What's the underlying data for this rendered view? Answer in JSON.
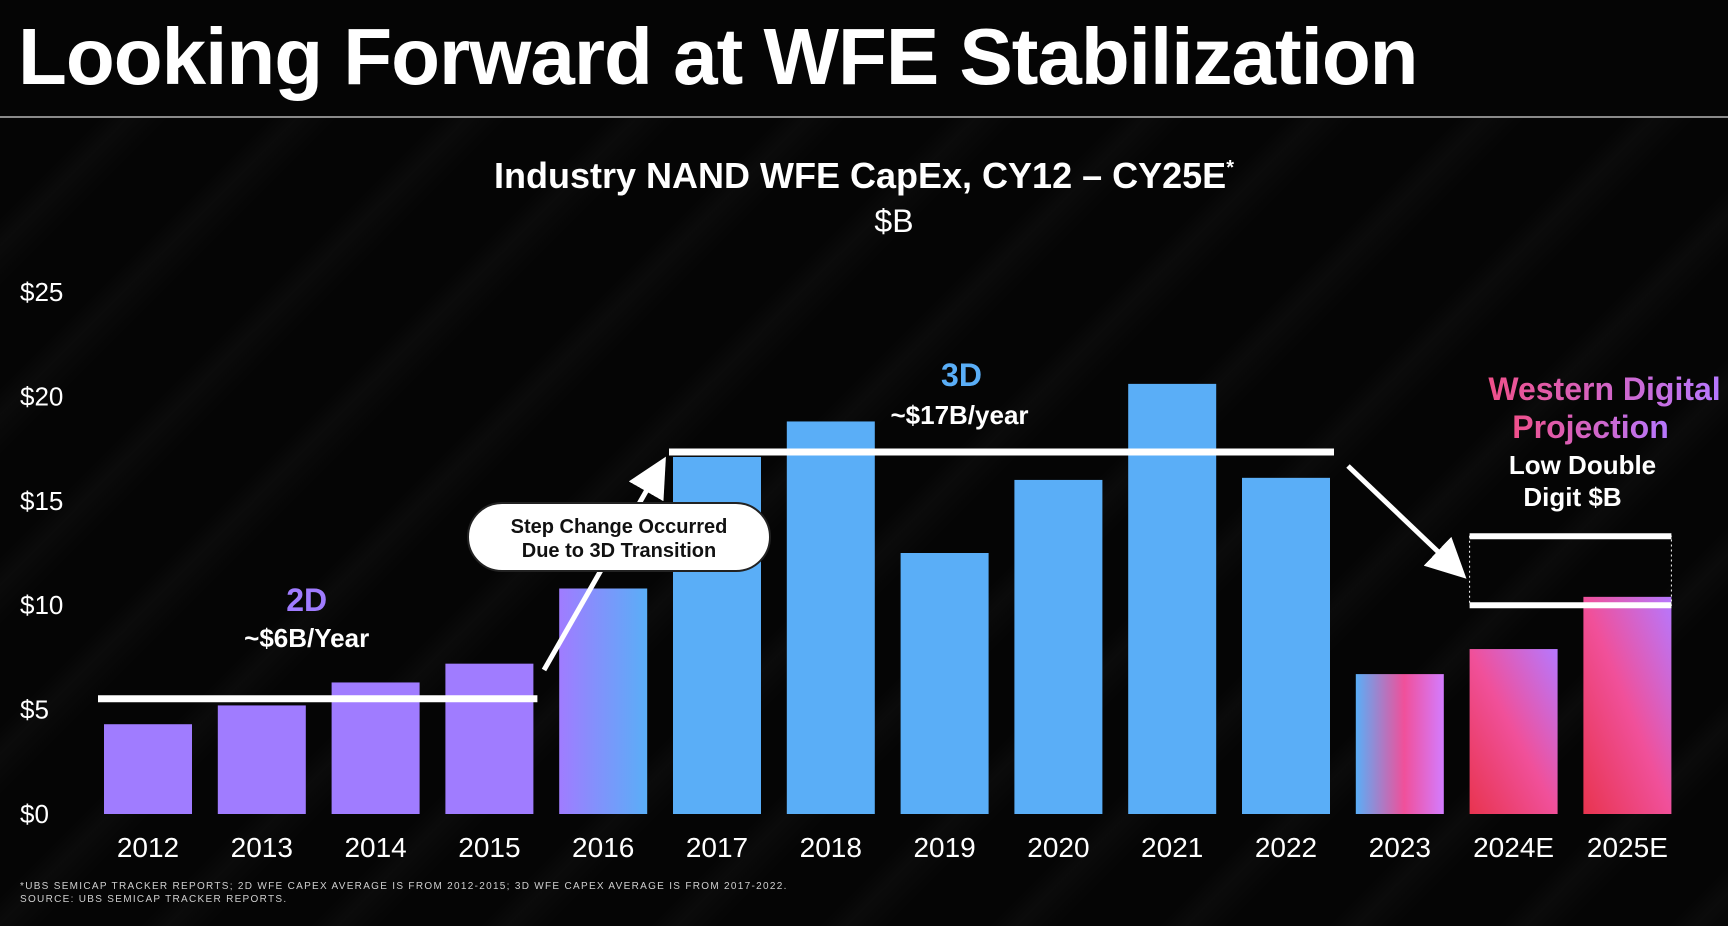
{
  "slide": {
    "title": "Looking Forward at WFE Stabilization",
    "footnote_line1": "*UBS SEMICAP TRACKER REPORTS; 2D WFE CAPEX AVERAGE IS FROM 2012-2015; 3D WFE CAPEX AVERAGE IS FROM 2017-2022.",
    "footnote_line2": "SOURCE: UBS SEMICAP TRACKER REPORTS."
  },
  "colors": {
    "bar_2d": "#a07cff",
    "bar_3d": "#5aaef7",
    "bar_projection_pink": "#f0509a",
    "bar_projection_red": "#e8344f",
    "label_2d": "#a07cff",
    "label_3d": "#5aaef7",
    "label_wd_start": "#f0508a",
    "label_wd_end": "#b678ff"
  },
  "chart_data": {
    "type": "bar",
    "title": "Industry NAND WFE CapEx, CY12 – CY25E",
    "title_marker": "*",
    "subtitle": "$B",
    "categories": [
      "2012",
      "2013",
      "2014",
      "2015",
      "2016",
      "2017",
      "2018",
      "2019",
      "2020",
      "2021",
      "2022",
      "2023",
      "2024E",
      "2025E"
    ],
    "values": [
      4.3,
      5.2,
      6.3,
      7.2,
      10.8,
      17.1,
      18.8,
      12.5,
      16.0,
      20.6,
      16.1,
      6.7,
      7.9,
      10.4
    ],
    "bar_groups": [
      "2D",
      "2D",
      "2D",
      "2D",
      "transition",
      "3D",
      "3D",
      "3D",
      "3D",
      "3D",
      "3D",
      "projection",
      "projection",
      "projection"
    ],
    "ylim": [
      0,
      25
    ],
    "yticks": [
      "$0",
      "$5",
      "$10",
      "$15",
      "$20",
      "$25"
    ],
    "ytick_values": [
      0,
      5,
      10,
      15,
      20,
      25
    ],
    "grid": false,
    "averages": [
      {
        "label": "2D",
        "sublabel": "~$6B/Year",
        "value": 6.0,
        "from": "2012",
        "to": "2015"
      },
      {
        "label": "3D",
        "sublabel": "~$17B/year",
        "value": 17.1,
        "from": "2017",
        "to": "2022"
      }
    ],
    "projection": {
      "label_line1": "Western Digital",
      "label_line2": "Projection",
      "sublabel_line1": "Low Double",
      "sublabel_line2": "Digit $B",
      "range_low": 10,
      "range_high": 13.3,
      "from": "2024E",
      "to": "2025E"
    },
    "callout": {
      "line1": "Step Change Occurred",
      "line2": "Due to 3D Transition"
    }
  }
}
